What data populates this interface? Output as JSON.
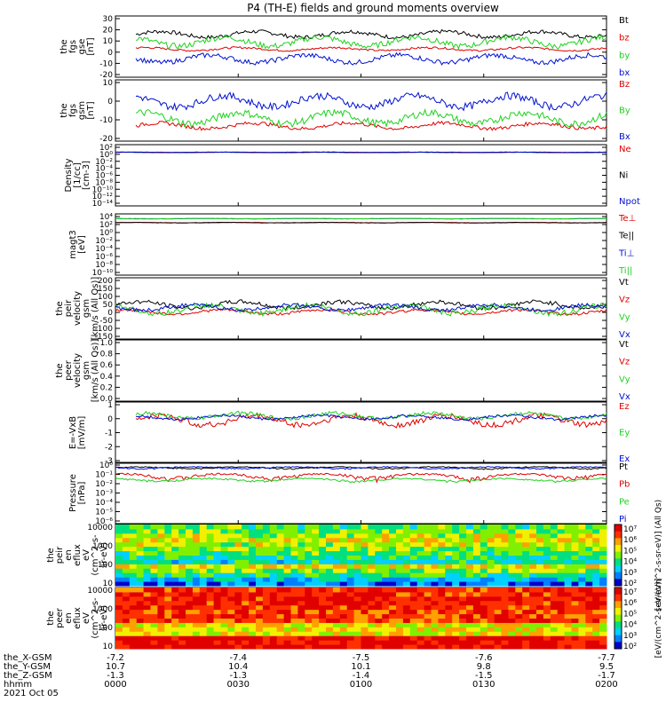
{
  "title": "P4 (TH-E) fields and ground moments overview",
  "colors": {
    "black": "#000000",
    "red": "#e00000",
    "green": "#1fd11f",
    "blue": "#0010d0",
    "yellow": "#c8c800"
  },
  "chart_data": [
    {
      "type": "line",
      "ylabel": [
        "the",
        "fgs",
        "gse",
        "[nT]"
      ],
      "ylim": [
        -20,
        30
      ],
      "yticks": [
        "30",
        "20",
        "10",
        "0",
        "-10",
        "-20"
      ],
      "series": [
        {
          "name": "Bt",
          "color": "black",
          "base": 15,
          "amp": 4,
          "t_start": "00:05"
        },
        {
          "name": "bz",
          "color": "red",
          "base": 3,
          "amp": 2,
          "t_start": "00:05"
        },
        {
          "name": "by",
          "color": "green",
          "base": 9,
          "amp": 6,
          "t_start": "00:05"
        },
        {
          "name": "bx",
          "color": "blue",
          "base": -5,
          "amp": 5,
          "t_start": "00:05"
        }
      ]
    },
    {
      "type": "line",
      "ylabel": [
        "the",
        "fgs",
        "gsm",
        "[nT]"
      ],
      "ylim": [
        -20,
        20
      ],
      "yticks": [
        "10",
        "0",
        "-10",
        "-20"
      ],
      "series": [
        {
          "name": "Bz",
          "color": "red",
          "base": -10,
          "amp": 3,
          "t_start": "00:05"
        },
        {
          "name": "By",
          "color": "green",
          "base": -5,
          "amp": 6,
          "t_start": "00:05"
        },
        {
          "name": "Bx",
          "color": "blue",
          "base": 6,
          "amp": 6,
          "t_start": "00:05"
        }
      ]
    },
    {
      "type": "line",
      "ylabel": [
        "Density",
        "[1/cc]",
        "[cm-3]"
      ],
      "ylim": [
        "1e-14",
        "1e2"
      ],
      "yticks": [
        "10²",
        "10⁰",
        "10⁻²",
        "10⁻⁴",
        "10⁻⁶",
        "10⁻⁸",
        "10⁻¹⁰",
        "10⁻¹²",
        "10⁻¹⁴"
      ],
      "series": [
        {
          "name": "Ne",
          "color": "red",
          "base": 1,
          "amp": 0.2
        },
        {
          "name": "Ni",
          "color": "black",
          "base": 1,
          "amp": 0.2
        },
        {
          "name": "Npot",
          "color": "blue",
          "base": 1,
          "amp": 0.2
        }
      ]
    },
    {
      "type": "line",
      "ylabel": [
        "magt3",
        "[eV]"
      ],
      "ylim": [
        "1e-10",
        "1e4"
      ],
      "yticks": [
        "10⁴",
        "10²",
        "10⁰",
        "10⁻²",
        "10⁻⁴",
        "10⁻⁶",
        "10⁻⁸",
        "10⁻¹⁰"
      ],
      "series": [
        {
          "name": "Te⊥",
          "color": "red",
          "base": 100,
          "amp": 20
        },
        {
          "name": "Te||",
          "color": "black",
          "base": 100,
          "amp": 20
        },
        {
          "name": "Ti⊥",
          "color": "blue",
          "base": 800,
          "amp": 100
        },
        {
          "name": "Ti||",
          "color": "green",
          "base": 800,
          "amp": 100
        }
      ]
    },
    {
      "type": "line",
      "ylabel": [
        "the",
        "peir",
        "velocity",
        "gsm",
        "[km/s (All Qs)]"
      ],
      "ylim": [
        -150,
        200
      ],
      "yticks": [
        "200",
        "150",
        "100",
        "50",
        "0",
        "-50",
        "-100",
        "-150"
      ],
      "series": [
        {
          "name": "Vt",
          "color": "black",
          "base": 45,
          "amp": 30
        },
        {
          "name": "Vz",
          "color": "red",
          "base": 5,
          "amp": 20
        },
        {
          "name": "Vy",
          "color": "green",
          "base": 20,
          "amp": 40
        },
        {
          "name": "Vx",
          "color": "blue",
          "base": 30,
          "amp": 25
        }
      ]
    },
    {
      "type": "line",
      "ylabel": [
        "the",
        "peer",
        "velocity",
        "gsm",
        "[km/s (All Qs)]"
      ],
      "ylim": [
        0,
        1
      ],
      "yticks": [
        "1.0",
        "0.8",
        "0.6",
        "0.4",
        "0.2",
        "0.0"
      ],
      "series": [
        {
          "name": "Vt",
          "color": "black"
        },
        {
          "name": "Vz",
          "color": "red"
        },
        {
          "name": "Vy",
          "color": "green"
        },
        {
          "name": "Vx",
          "color": "blue"
        }
      ]
    },
    {
      "type": "line",
      "ylabel": [
        "E=-VxB",
        "[mV/m]"
      ],
      "ylim": [
        -3,
        1
      ],
      "yticks": [
        "1",
        "0",
        "-1",
        "-2",
        "-3"
      ],
      "series": [
        {
          "name": "Ez",
          "color": "red",
          "base": -0.2,
          "amp": 0.5,
          "t_start": "00:05"
        },
        {
          "name": "Ey",
          "color": "green",
          "base": 0.1,
          "amp": 0.3,
          "t_start": "00:05"
        },
        {
          "name": "Ex",
          "color": "blue",
          "base": 0,
          "amp": 0.2,
          "t_start": "00:05"
        }
      ]
    },
    {
      "type": "line",
      "ylabel": [
        "Pressure",
        "[nPa]"
      ],
      "ylim": [
        "1e-6",
        "1e0"
      ],
      "yticks": [
        "10⁰",
        "10⁻¹",
        "10⁻²",
        "10⁻³",
        "10⁻⁴",
        "10⁻⁵",
        "10⁻⁶"
      ],
      "series": [
        {
          "name": "Pt",
          "color": "black",
          "base": 0.3,
          "amp": 0.1
        },
        {
          "name": "Pb",
          "color": "red",
          "base": 0.05,
          "amp": 0.04
        },
        {
          "name": "Pe",
          "color": "green",
          "base": 0.02,
          "amp": 0.01
        },
        {
          "name": "Pi",
          "color": "blue",
          "base": 0.3,
          "amp": 0.1
        }
      ]
    },
    {
      "type": "heatmap",
      "ylabel": [
        "the",
        "peir",
        "en",
        "eflux",
        "eV",
        "(cm^2-s-",
        "sr-eV)"
      ],
      "ylim": [
        5,
        20000
      ],
      "yticks": [
        "10000",
        "1000",
        "100",
        "10"
      ],
      "colorbar": {
        "label": "[eV/(cm^2-s-sr-eV)] (All Qs)",
        "ticks": [
          "10⁷",
          "10⁶",
          "10⁵",
          "10⁴",
          "10³",
          "10²"
        ]
      }
    },
    {
      "type": "heatmap",
      "ylabel": [
        "the",
        "peer",
        "en",
        "eflux",
        "eV",
        "(cm^2-s-",
        "sr-eV)"
      ],
      "ylim": [
        5,
        20000
      ],
      "yticks": [
        "10000",
        "1000",
        "100",
        "10"
      ],
      "colorbar": {
        "label": "[eV/(cm^2-s-sr-eV)]",
        "ticks": [
          "10⁷",
          "10⁶",
          "10⁵",
          "10⁴",
          "10³",
          "10²"
        ]
      }
    }
  ],
  "x_axis": {
    "ticks": [
      "0000",
      "0030",
      "0100",
      "0130",
      "0200"
    ],
    "rows": [
      {
        "label": "the_X-GSM",
        "values": [
          "-7.2",
          "-7.4",
          "-7.5",
          "-7.6",
          "-7.7"
        ]
      },
      {
        "label": "the_Y-GSM",
        "values": [
          "10.7",
          "10.4",
          "10.1",
          "9.8",
          "9.5"
        ]
      },
      {
        "label": "the_Z-GSM",
        "values": [
          "-1.3",
          "-1.3",
          "-1.4",
          "-1.5",
          "-1.7"
        ]
      },
      {
        "label": "hhmm",
        "values": [
          "0000",
          "0030",
          "0100",
          "0130",
          "0200"
        ]
      }
    ],
    "date": "2021 Oct 05"
  }
}
